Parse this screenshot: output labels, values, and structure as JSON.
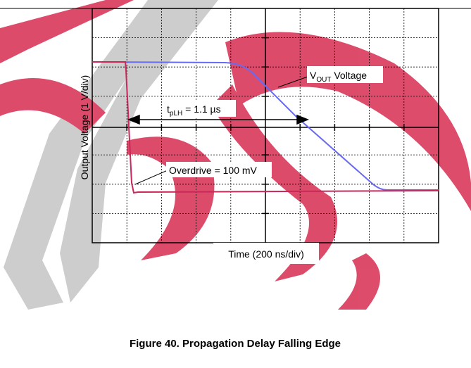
{
  "figure": {
    "y_axis_label": "Output Voltage (1 V/div)",
    "x_axis_label": "Time (200 ns/div)",
    "vout_label": {
      "main": "V",
      "sub": "OUT",
      "rest": " Voltage"
    },
    "tplh_label": {
      "main": "t",
      "sub": "pLH",
      "rest": " = 1.1 µs"
    },
    "overdrive_label": "Overdrive = 100 mV",
    "caption": "Figure 40. Propagation Delay Falling Edge"
  }
}
